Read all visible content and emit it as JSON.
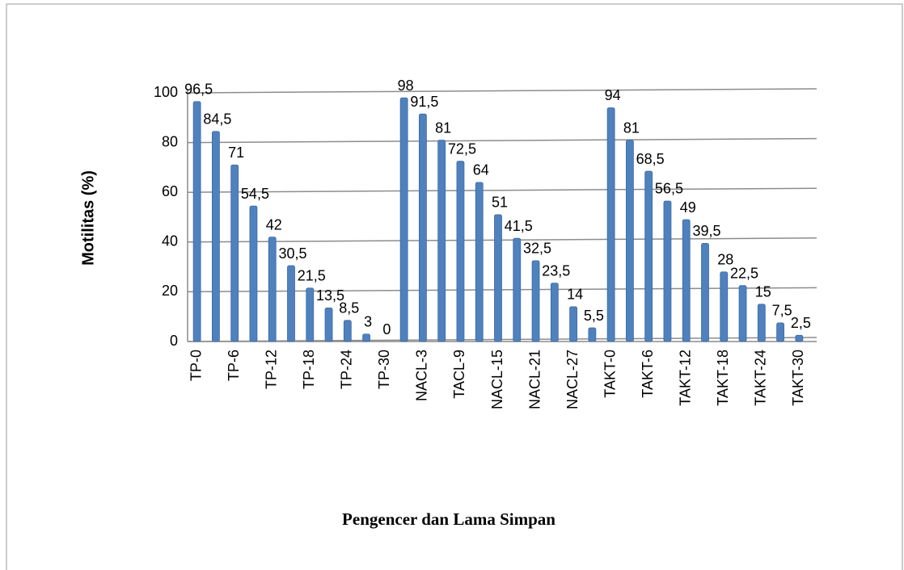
{
  "chart_data": {
    "type": "bar",
    "ylabel": "Motilitas (%)",
    "xlabel": "Pengencer dan Lama Simpan",
    "categories": [
      "TP-0",
      null,
      "TP-6",
      null,
      "TP-12",
      null,
      "TP-18",
      null,
      "TP-24",
      null,
      "TP-30",
      null,
      "NACL-3",
      null,
      "TACL-9",
      null,
      "NACL-15",
      null,
      "NACL-21",
      null,
      "NACL-27",
      null,
      "TAKT-0",
      null,
      "TAKT-6",
      null,
      "TAKT-12",
      null,
      "TAKT-18",
      null,
      "TAKT-24",
      null,
      "TAKT-30"
    ],
    "values": [
      96.5,
      84.5,
      71,
      54.5,
      42,
      30.5,
      21.5,
      13.5,
      8.5,
      3,
      0,
      98,
      91.5,
      81,
      72.5,
      64,
      51,
      41.5,
      32.5,
      23.5,
      14,
      5.5,
      94,
      81,
      68.5,
      56.5,
      49,
      39.5,
      28,
      22.5,
      15,
      7.5,
      2.5
    ],
    "value_labels": [
      "96,5",
      "84,5",
      "71",
      "54,5",
      "42",
      "30,5",
      "21,5",
      "13,5",
      "8,5",
      "3",
      "0",
      "98",
      "91,5",
      "81",
      "72,5",
      "64",
      "51",
      "41,5",
      "32,5",
      "23,5",
      "14",
      "5,5",
      "94",
      "81",
      "68,5",
      "56,5",
      "49",
      "39,5",
      "28",
      "22,5",
      "15",
      "7,5",
      "2,5"
    ],
    "color": "#4f81bd",
    "ylim": [
      0,
      100
    ],
    "yticks": [
      0,
      20,
      40,
      60,
      80,
      100
    ],
    "grid": true
  }
}
